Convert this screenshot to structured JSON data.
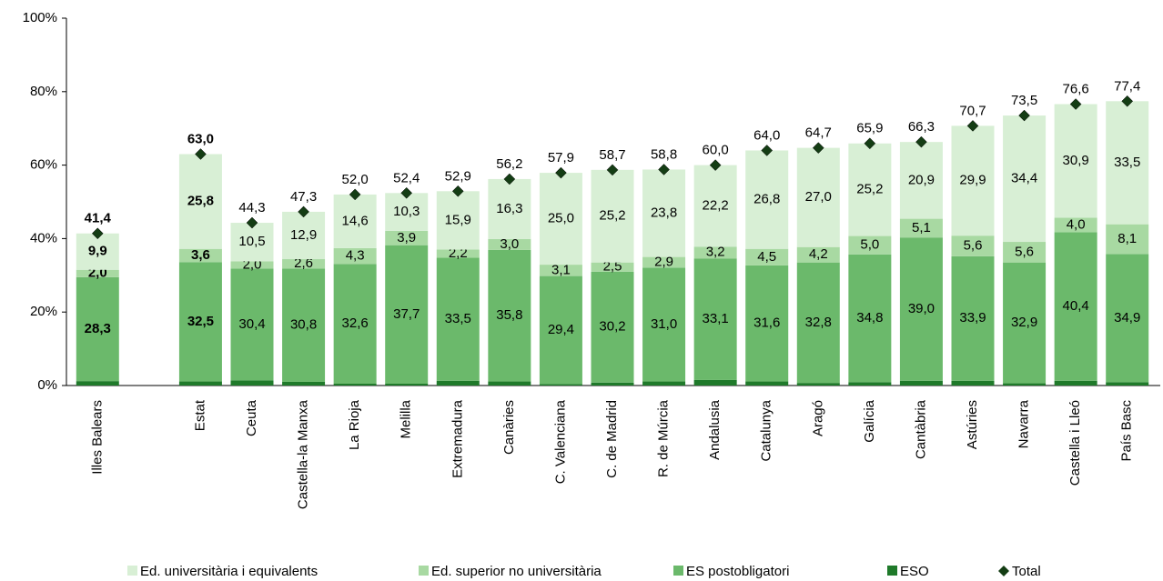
{
  "chart_data": {
    "type": "stacked-bar",
    "categories": [
      "Illes Balears",
      null,
      "Estat",
      "Ceuta",
      "Castella-la Manxa",
      "La Rioja",
      "Melilla",
      "Extremadura",
      "Canàries",
      "C. Valenciana",
      "C. de Madrid",
      "R. de Múrcia",
      "Andalusia",
      "Catalunya",
      "Aragó",
      "Galícia",
      "Cantàbria",
      "Astúries",
      "Navarra",
      "Castella i Lleó",
      "País Basc"
    ],
    "series": [
      {
        "name": "ESO",
        "color": "#1f7a2a",
        "values": [
          1.2,
          null,
          1.1,
          1.4,
          1.0,
          0.5,
          0.5,
          1.3,
          1.1,
          0.4,
          0.8,
          1.1,
          1.5,
          1.1,
          0.7,
          0.9,
          1.3,
          1.3,
          0.6,
          1.3,
          0.9
        ],
        "value_labels": [
          "1,2",
          null,
          "1,1",
          "1,4",
          "1,0",
          "0,5",
          "0,5",
          "1,3",
          "1,1",
          "0,4",
          "0,8",
          "1,1",
          "1,5",
          "1,1",
          "0,7",
          "0,9",
          "1,3",
          "1,3",
          "0,6",
          "1,3",
          "0,9"
        ]
      },
      {
        "name": "ES postobligatori",
        "color": "#6bb96b",
        "values": [
          28.3,
          null,
          32.5,
          30.4,
          30.8,
          32.6,
          37.7,
          33.5,
          35.8,
          29.4,
          30.2,
          31.0,
          33.1,
          31.6,
          32.8,
          34.8,
          39.0,
          33.9,
          32.9,
          40.4,
          34.9
        ],
        "value_labels": [
          "28,3",
          null,
          "32,5",
          "30,4",
          "30,8",
          "32,6",
          "37,7",
          "33,5",
          "35,8",
          "29,4",
          "30,2",
          "31,0",
          "33,1",
          "31,6",
          "32,8",
          "34,8",
          "39,0",
          "33,9",
          "32,9",
          "40,4",
          "34,9"
        ]
      },
      {
        "name": "Ed. superior no universitària",
        "color": "#a8d9a2",
        "values": [
          2.0,
          null,
          3.6,
          2.0,
          2.6,
          4.3,
          3.9,
          2.2,
          3.0,
          3.1,
          2.5,
          2.9,
          3.2,
          4.5,
          4.2,
          5.0,
          5.1,
          5.6,
          5.6,
          4.0,
          8.1
        ],
        "value_labels": [
          "2,0",
          null,
          "3,6",
          "2,0",
          "2,6",
          "4,3",
          "3,9",
          "2,2",
          "3,0",
          "3,1",
          "2,5",
          "2,9",
          "3,2",
          "4,5",
          "4,2",
          "5,0",
          "5,1",
          "5,6",
          "5,6",
          "4,0",
          "8,1"
        ]
      },
      {
        "name": "Ed. universitària i equivalents",
        "color": "#d8efd5",
        "values": [
          9.9,
          null,
          25.8,
          10.5,
          12.9,
          14.6,
          10.3,
          15.9,
          16.3,
          25.0,
          25.2,
          23.8,
          22.2,
          26.8,
          27.0,
          25.2,
          20.9,
          29.9,
          34.4,
          30.9,
          33.5
        ],
        "value_labels": [
          "9,9",
          null,
          "25,8",
          "10,5",
          "12,9",
          "14,6",
          "10,3",
          "15,9",
          "16,3",
          "25,0",
          "25,2",
          "23,8",
          "22,2",
          "26,8",
          "27,0",
          "25,2",
          "20,9",
          "29,9",
          "34,4",
          "30,9",
          "33,5"
        ]
      }
    ],
    "total": {
      "name": "Total",
      "color": "#143d14",
      "values": [
        41.4,
        null,
        63.0,
        44.3,
        47.3,
        52.0,
        52.4,
        52.9,
        56.2,
        57.9,
        58.7,
        58.8,
        60.0,
        64.0,
        64.7,
        65.9,
        66.3,
        70.7,
        73.5,
        76.6,
        77.4
      ],
      "value_labels": [
        "41,4",
        null,
        "63,0",
        "44,3",
        "47,3",
        "52,0",
        "52,4",
        "52,9",
        "56,2",
        "57,9",
        "58,7",
        "58,8",
        "60,0",
        "64,0",
        "64,7",
        "65,9",
        "66,3",
        "70,7",
        "73,5",
        "76,6",
        "77,4"
      ]
    },
    "ylim": [
      0,
      100
    ],
    "yticks": [
      {
        "value": 0,
        "label": "0%"
      },
      {
        "value": 20,
        "label": "20%"
      },
      {
        "value": 40,
        "label": "40%"
      },
      {
        "value": 60,
        "label": "60%"
      },
      {
        "value": 80,
        "label": "80%"
      },
      {
        "value": 100,
        "label": "100%"
      }
    ],
    "legend": "bottom"
  }
}
